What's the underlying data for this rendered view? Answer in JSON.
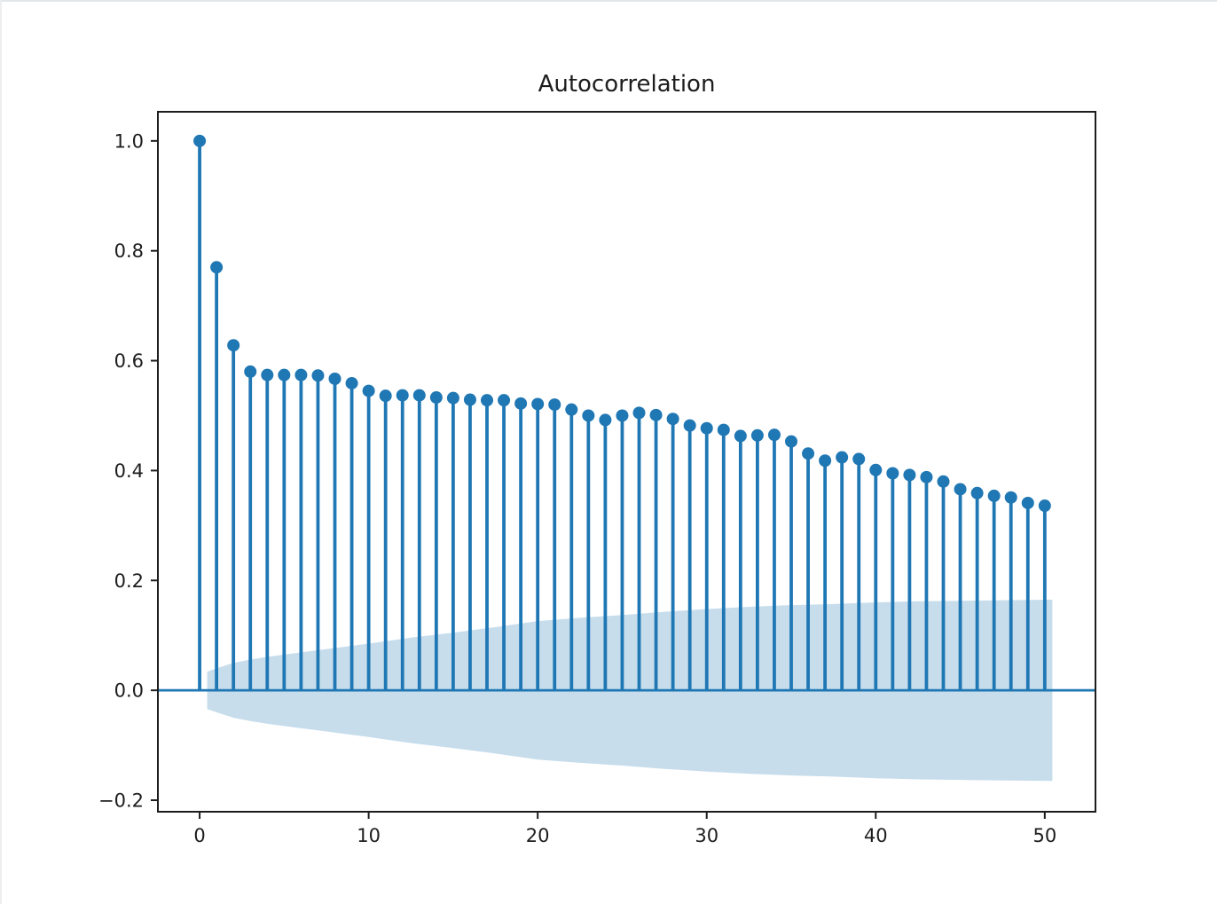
{
  "window": {
    "background": "#ffffff"
  },
  "chart_data": {
    "type": "stem",
    "title": "Autocorrelation",
    "xlabel": "",
    "ylabel": "",
    "grid": false,
    "legend": null,
    "x": [
      0,
      1,
      2,
      3,
      4,
      5,
      6,
      7,
      8,
      9,
      10,
      11,
      12,
      13,
      14,
      15,
      16,
      17,
      18,
      19,
      20,
      21,
      22,
      23,
      24,
      25,
      26,
      27,
      28,
      29,
      30,
      31,
      32,
      33,
      34,
      35,
      36,
      37,
      38,
      39,
      40,
      41,
      42,
      43,
      44,
      45,
      46,
      47,
      48,
      49,
      50
    ],
    "values": [
      1.0,
      0.77,
      0.628,
      0.58,
      0.574,
      0.574,
      0.574,
      0.573,
      0.567,
      0.559,
      0.545,
      0.536,
      0.537,
      0.537,
      0.533,
      0.532,
      0.529,
      0.528,
      0.528,
      0.522,
      0.521,
      0.52,
      0.511,
      0.5,
      0.492,
      0.5,
      0.505,
      0.501,
      0.494,
      0.482,
      0.477,
      0.474,
      0.463,
      0.464,
      0.465,
      0.453,
      0.431,
      0.418,
      0.424,
      0.421,
      0.401,
      0.395,
      0.392,
      0.388,
      0.38,
      0.366,
      0.359,
      0.354,
      0.351,
      0.341,
      0.336
    ],
    "confidence_band": {
      "description": "shaded region symmetric about zero, half-width by lag",
      "control_points": [
        [
          0.45,
          0.034
        ],
        [
          1,
          0.04
        ],
        [
          2,
          0.05
        ],
        [
          3,
          0.056
        ],
        [
          4,
          0.061
        ],
        [
          5,
          0.065
        ],
        [
          6,
          0.069
        ],
        [
          7,
          0.073
        ],
        [
          8,
          0.077
        ],
        [
          9,
          0.081
        ],
        [
          10,
          0.085
        ],
        [
          12.5,
          0.096
        ],
        [
          15,
          0.105
        ],
        [
          17.5,
          0.115
        ],
        [
          20,
          0.126
        ],
        [
          22.5,
          0.132
        ],
        [
          25,
          0.137
        ],
        [
          27.5,
          0.143
        ],
        [
          30,
          0.148
        ],
        [
          32.5,
          0.152
        ],
        [
          35,
          0.155
        ],
        [
          37.5,
          0.157
        ],
        [
          40,
          0.16
        ],
        [
          42.5,
          0.162
        ],
        [
          45,
          0.163
        ],
        [
          47.5,
          0.164
        ],
        [
          50.45,
          0.165
        ]
      ]
    },
    "xticks": [
      0,
      10,
      20,
      30,
      40,
      50
    ],
    "xtick_labels": [
      "0",
      "10",
      "20",
      "30",
      "40",
      "50"
    ],
    "yticks": [
      -0.2,
      0.0,
      0.2,
      0.4,
      0.6,
      0.8,
      1.0
    ],
    "ytick_labels": [
      "−0.2",
      "0.0",
      "0.2",
      "0.4",
      "0.6",
      "0.8",
      "1.0"
    ],
    "xlim": [
      -2.47,
      53.0
    ],
    "ylim": [
      -0.221,
      1.053
    ],
    "zero_line": 0.0,
    "colors": {
      "stem": "#1f77b4",
      "marker": "#1f77b4",
      "zero_line": "#1f77b4",
      "band_fill": "#c7ddec",
      "axis": "#1d1d1d",
      "text": "#1d1d1d"
    },
    "style": {
      "marker_radius": 7,
      "stem_width": 3.8,
      "zero_line_width": 2.8,
      "frame_width": 2,
      "tick_length": 8
    }
  }
}
